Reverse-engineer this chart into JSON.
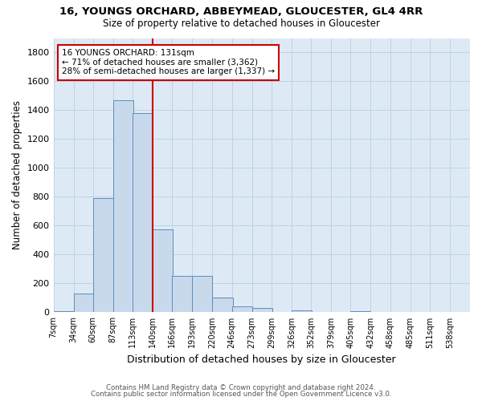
{
  "title1": "16, YOUNGS ORCHARD, ABBEYMEAD, GLOUCESTER, GL4 4RR",
  "title2": "Size of property relative to detached houses in Gloucester",
  "xlabel": "Distribution of detached houses by size in Gloucester",
  "ylabel": "Number of detached properties",
  "bar_color": "#c9d9ec",
  "bar_edge_color": "#5b8dbf",
  "grid_color": "#b8cfe0",
  "bg_color": "#ddeaf5",
  "annotation_box_color": "#cc0000",
  "vline_color": "#cc0000",
  "annotation_line1": "16 YOUNGS ORCHARD: 131sqm",
  "annotation_line2": "← 71% of detached houses are smaller (3,362)",
  "annotation_line3": "28% of semi-detached houses are larger (1,337) →",
  "vline_x": 140,
  "categories": [
    "7sqm",
    "34sqm",
    "60sqm",
    "87sqm",
    "113sqm",
    "140sqm",
    "166sqm",
    "193sqm",
    "220sqm",
    "246sqm",
    "273sqm",
    "299sqm",
    "326sqm",
    "352sqm",
    "379sqm",
    "405sqm",
    "432sqm",
    "458sqm",
    "485sqm",
    "511sqm",
    "538sqm"
  ],
  "bin_edges": [
    7,
    34,
    60,
    87,
    113,
    140,
    166,
    193,
    220,
    246,
    273,
    299,
    326,
    352,
    379,
    405,
    432,
    458,
    485,
    511,
    538
  ],
  "bar_heights": [
    10,
    130,
    790,
    1470,
    1380,
    575,
    250,
    250,
    105,
    40,
    30,
    0,
    15,
    0,
    0,
    10,
    0,
    0,
    0,
    0,
    0
  ],
  "bin_width": 27,
  "ylim": [
    0,
    1900
  ],
  "yticks": [
    0,
    200,
    400,
    600,
    800,
    1000,
    1200,
    1400,
    1600,
    1800
  ],
  "footer1": "Contains HM Land Registry data © Crown copyright and database right 2024.",
  "footer2": "Contains public sector information licensed under the Open Government Licence v3.0."
}
